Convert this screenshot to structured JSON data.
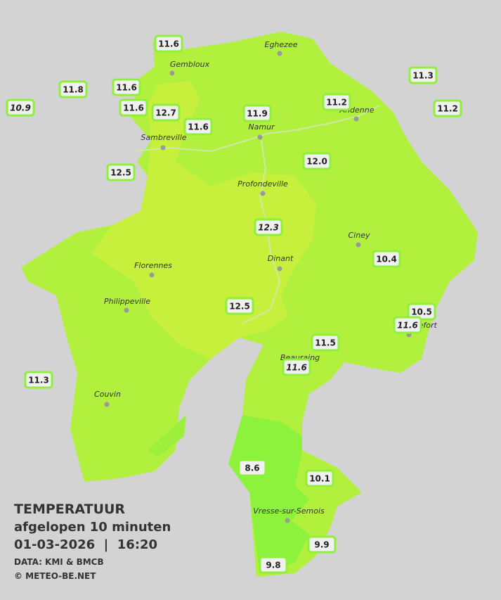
{
  "cities": [
    {
      "label": "Eghezee"
    },
    {
      "label": "Gembloux"
    },
    {
      "label": "Andenne"
    },
    {
      "label": "Namur"
    },
    {
      "label": "Sambreville"
    },
    {
      "label": "Profondeville"
    },
    {
      "label": "Ciney"
    },
    {
      "label": "Florennes"
    },
    {
      "label": "Dinant"
    },
    {
      "label": "Philippeville"
    },
    {
      "label": "Rochefort"
    },
    {
      "label": "Beauraing"
    },
    {
      "label": "Couvin"
    },
    {
      "label": "Vresse-sur-Semois"
    }
  ],
  "stations": [
    {
      "label": "11.6",
      "italic": false
    },
    {
      "label": "11.8",
      "italic": false
    },
    {
      "label": "11.6",
      "italic": false
    },
    {
      "label": "10.9",
      "italic": true
    },
    {
      "label": "11.6",
      "italic": false
    },
    {
      "label": "12.7",
      "italic": false
    },
    {
      "label": "11.6",
      "italic": false
    },
    {
      "label": "11.9",
      "italic": false
    },
    {
      "label": "11.2",
      "italic": false
    },
    {
      "label": "11.3",
      "italic": false
    },
    {
      "label": "11.2",
      "italic": false
    },
    {
      "label": "12.0",
      "italic": false
    },
    {
      "label": "12.5",
      "italic": false
    },
    {
      "label": "12.3",
      "italic": true
    },
    {
      "label": "10.4",
      "italic": false
    },
    {
      "label": "10.5",
      "italic": false
    },
    {
      "label": "11.6",
      "italic": true
    },
    {
      "label": "12.5",
      "italic": false
    },
    {
      "label": "11.5",
      "italic": false
    },
    {
      "label": "11.6",
      "italic": true
    },
    {
      "label": "11.3",
      "italic": false
    },
    {
      "label": "8.6",
      "italic": false
    },
    {
      "label": "10.1",
      "italic": false
    },
    {
      "label": "9.9",
      "italic": false
    },
    {
      "label": "9.8",
      "italic": false
    }
  ],
  "legend": {
    "title": "TEMPERATUUR",
    "subtitle": "afgelopen 10 minuten",
    "timestamp": "01-03-2026  |  16:20",
    "source": "DATA: KMI & BMCB",
    "copyright": "© METEO-BE.NET"
  }
}
